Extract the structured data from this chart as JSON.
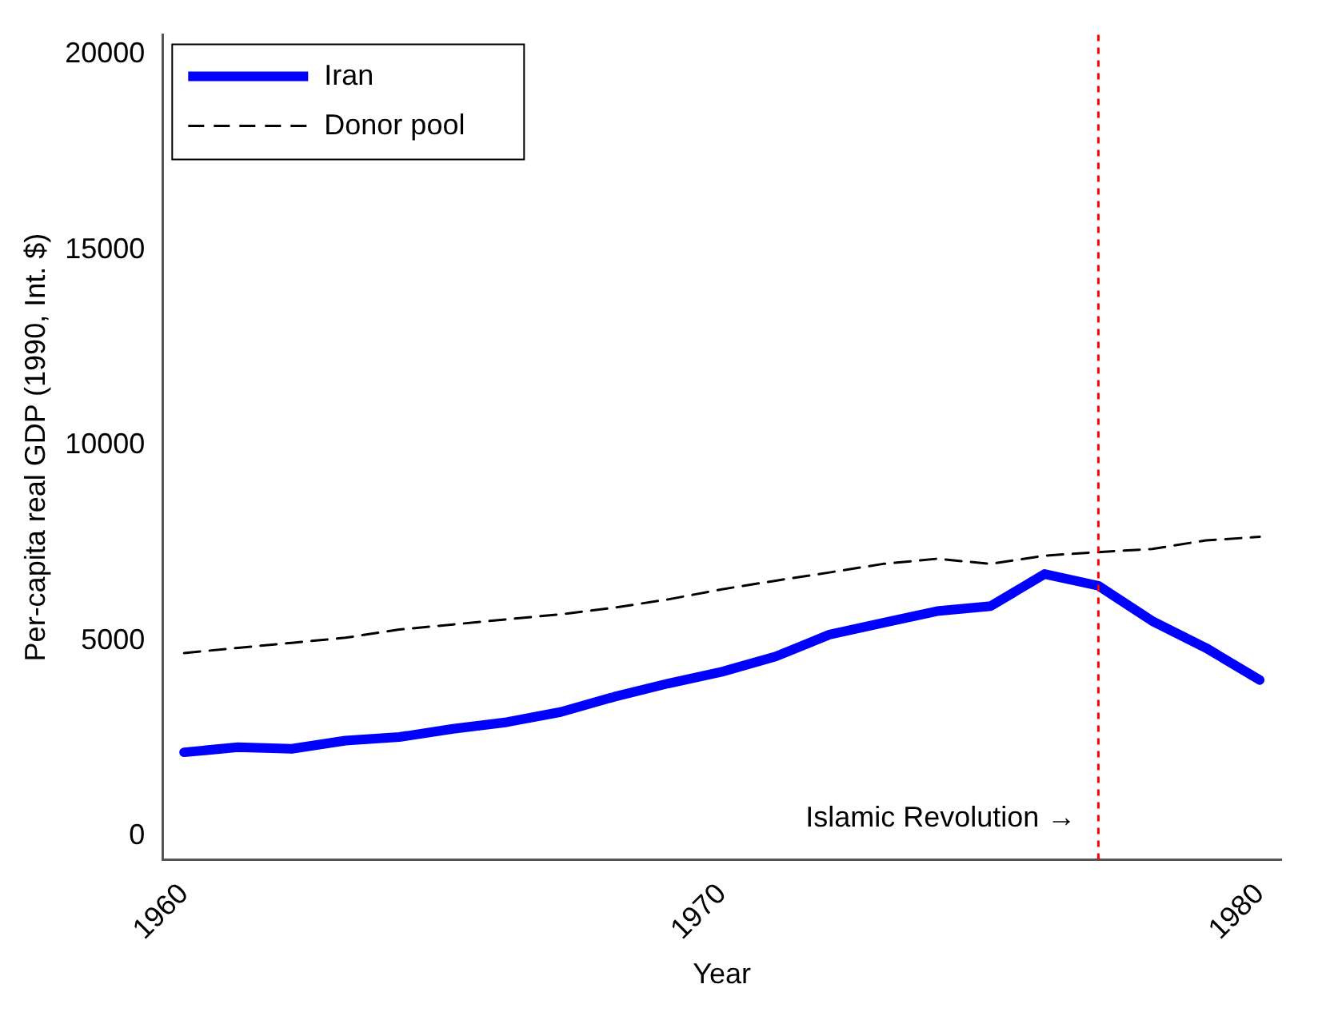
{
  "chart_data": {
    "type": "line",
    "xlabel": "Year",
    "ylabel": "Per-capita real GDP (1990, Int. $)",
    "x": [
      1960,
      1961,
      1962,
      1963,
      1964,
      1965,
      1966,
      1967,
      1968,
      1969,
      1970,
      1971,
      1972,
      1973,
      1974,
      1975,
      1976,
      1977,
      1978,
      1979,
      1980
    ],
    "series": [
      {
        "name": "Iran",
        "color": "#0000ff",
        "line_style": "solid",
        "values": [
          2150,
          2280,
          2240,
          2450,
          2540,
          2750,
          2920,
          3180,
          3570,
          3910,
          4210,
          4600,
          5160,
          5460,
          5760,
          5890,
          6710,
          6410,
          5510,
          4820,
          4000
        ]
      },
      {
        "name": "Donor pool",
        "color": "#000000",
        "line_style": "dashed",
        "values": [
          4690,
          4820,
          4950,
          5080,
          5290,
          5420,
          5550,
          5680,
          5850,
          6060,
          6320,
          6540,
          6750,
          6970,
          7100,
          6970,
          7180,
          7270,
          7350,
          7570,
          7660
        ]
      }
    ],
    "xlim": [
      1959.6,
      1980.4
    ],
    "xticks": [
      1960,
      1970,
      1980
    ],
    "ylim": [
      -600,
      20500
    ],
    "yticks": [
      0,
      5000,
      10000,
      15000,
      20000
    ],
    "ref_lines": [
      {
        "axis": "x",
        "value": 1977,
        "color": "#ff0000",
        "line_style": "dotted"
      }
    ],
    "annotations": [
      "Islamic Revolution →"
    ],
    "legend": "top left",
    "grid": false,
    "marker": "none"
  }
}
